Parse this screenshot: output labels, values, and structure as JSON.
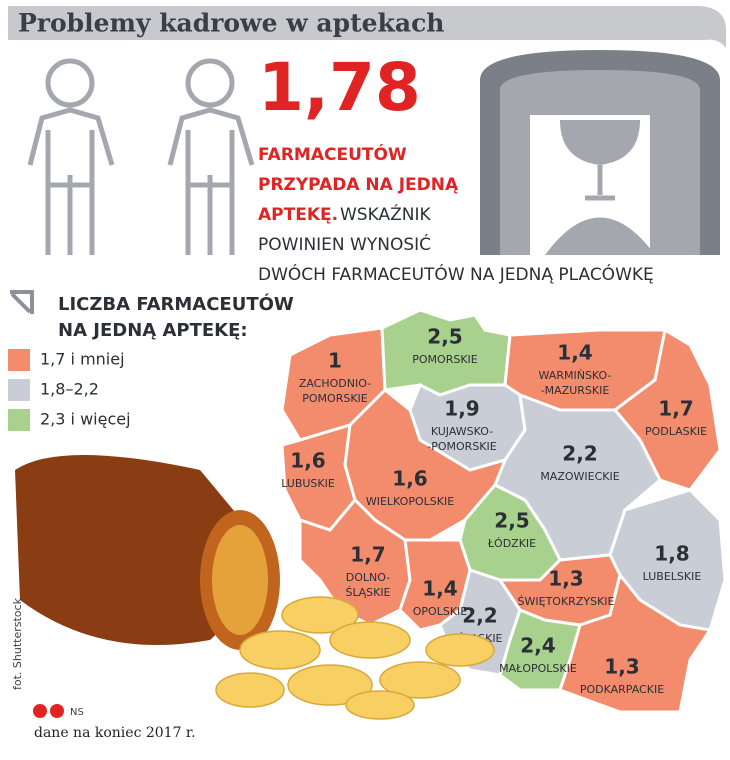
{
  "header": {
    "title": "Problemy kadrowe w aptekach"
  },
  "headline": {
    "value": "1,78",
    "highlight_lines": [
      "FARMACEUTÓW",
      "PRZYPADA NA JEDNĄ",
      "APTEKĘ."
    ],
    "rest_lines": [
      "WSKAŹNIK",
      "POWINIEN WYNOSIĆ",
      "DWÓCH FARMACEUTÓW NA JEDNĄ PLACÓWKĘ"
    ]
  },
  "legend": {
    "title_lines": [
      "LICZBA FARMACEUTÓW",
      "NA JEDNĄ APTEKĘ:"
    ],
    "items": [
      {
        "label": "1,7 i mniej",
        "color": "#f28c6c"
      },
      {
        "label": "1,8–2,2",
        "color": "#c9cdd5"
      },
      {
        "label": "2,3 i więcej",
        "color": "#a9d18e"
      }
    ]
  },
  "regions": [
    {
      "value": "1",
      "name_lines": [
        "ZACHODNIO-",
        "POMORSKIE"
      ],
      "color": "#f28c6c"
    },
    {
      "value": "2,5",
      "name_lines": [
        "POMORSKIE"
      ],
      "color": "#a9d18e"
    },
    {
      "value": "1,4",
      "name_lines": [
        "WARMIŃSKO-",
        "-MAZURSKIE"
      ],
      "color": "#f28c6c"
    },
    {
      "value": "1,7",
      "name_lines": [
        "PODLASKIE"
      ],
      "color": "#f28c6c"
    },
    {
      "value": "1,9",
      "name_lines": [
        "KUJAWSKO-",
        "-POMORSKIE"
      ],
      "color": "#c9cdd5"
    },
    {
      "value": "2,2",
      "name_lines": [
        "MAZOWIECKIE"
      ],
      "color": "#c9cdd5"
    },
    {
      "value": "1,6",
      "name_lines": [
        "LUBUSKIE"
      ],
      "color": "#f28c6c"
    },
    {
      "value": "1,6",
      "name_lines": [
        "WIELKOPOLSKIE"
      ],
      "color": "#f28c6c"
    },
    {
      "value": "2,5",
      "name_lines": [
        "ŁÓDZKIE"
      ],
      "color": "#a9d18e"
    },
    {
      "value": "1,8",
      "name_lines": [
        "LUBELSKIE"
      ],
      "color": "#c9cdd5"
    },
    {
      "value": "1,7",
      "name_lines": [
        "DOLNO-",
        "ŚLĄSKIE"
      ],
      "color": "#f28c6c"
    },
    {
      "value": "1,4",
      "name_lines": [
        "OPOLSKIE"
      ],
      "color": "#f28c6c"
    },
    {
      "value": "2,2",
      "name_lines": [
        "ŚLĄSKIE"
      ],
      "color": "#c9cdd5"
    },
    {
      "value": "1,3",
      "name_lines": [
        "ŚWIĘTOKRZYSKIE"
      ],
      "color": "#f28c6c"
    },
    {
      "value": "2,4",
      "name_lines": [
        "MAŁOPOLSKIE"
      ],
      "color": "#a9d18e"
    },
    {
      "value": "1,3",
      "name_lines": [
        "PODKARPACKIE"
      ],
      "color": "#f28c6c"
    }
  ],
  "footer": {
    "photo_credit": "fot. Shutterstock",
    "author": "NS",
    "source": "dane na koniec 2017 r."
  }
}
